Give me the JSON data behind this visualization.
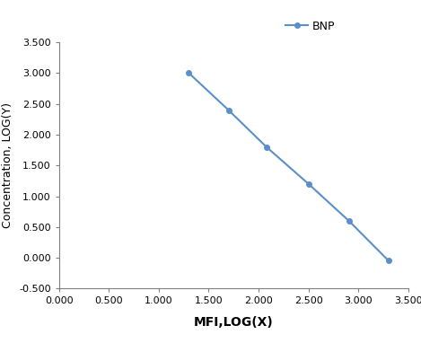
{
  "x_values": [
    1.301,
    1.699,
    2.079,
    2.5,
    2.903,
    3.301
  ],
  "y_values": [
    3.0,
    2.398,
    1.799,
    1.2,
    0.602,
    -0.046
  ],
  "line_color": "#5b8fc9",
  "marker_style": "o",
  "marker_size": 4,
  "line_width": 1.5,
  "xlabel": "MFI,LOG(X)",
  "ylabel": "Concentration, LOG(Y)",
  "legend_label": "BNP",
  "xlim": [
    0.0,
    3.5
  ],
  "ylim": [
    -0.5,
    3.5
  ],
  "xticks": [
    0.0,
    0.5,
    1.0,
    1.5,
    2.0,
    2.5,
    3.0,
    3.5
  ],
  "yticks": [
    -0.5,
    0.0,
    0.5,
    1.0,
    1.5,
    2.0,
    2.5,
    3.0,
    3.5
  ],
  "background_color": "#ffffff",
  "xlabel_fontsize": 10,
  "ylabel_fontsize": 9,
  "tick_fontsize": 8,
  "legend_fontsize": 9,
  "spine_color": "#7f7f7f"
}
